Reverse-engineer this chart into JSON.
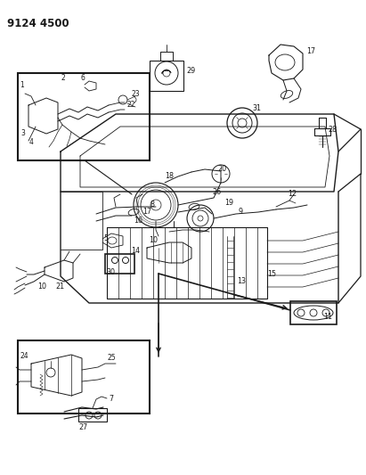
{
  "title": "9124 4500",
  "bg_color": "#ffffff",
  "lc": "#1a1a1a",
  "fig_width": 4.11,
  "fig_height": 5.33,
  "dpi": 100,
  "title_fontsize": 8.5,
  "label_fontsize": 5.8
}
